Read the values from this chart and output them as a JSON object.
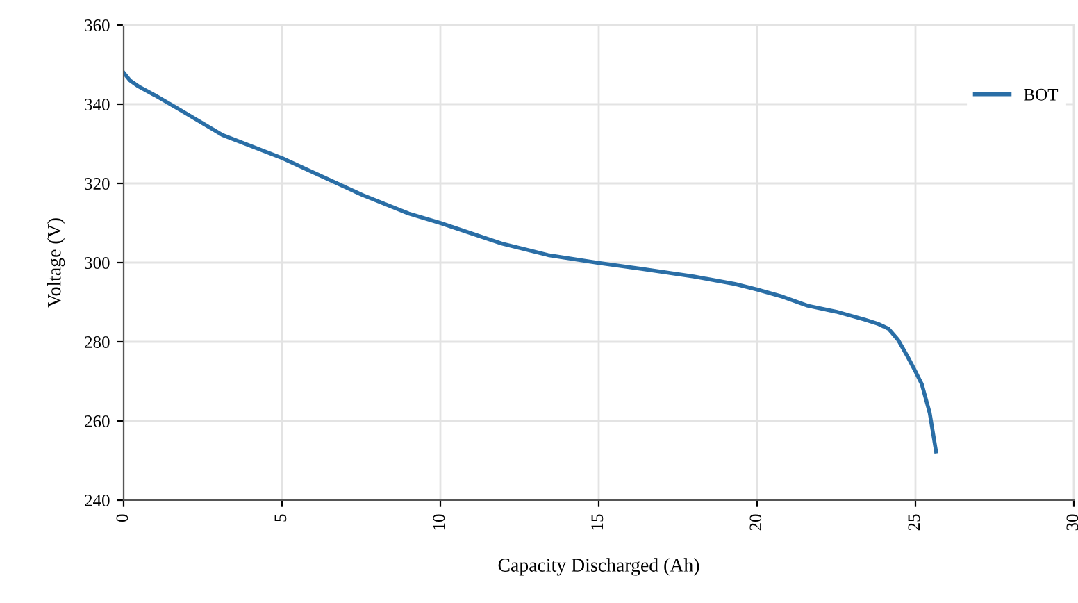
{
  "chart_data": {
    "type": "line",
    "xlabel": "Capacity Discharged (Ah)",
    "ylabel": "Voltage (V)",
    "xlim": [
      0,
      30
    ],
    "xticks": [
      0,
      5,
      10,
      15,
      20,
      25,
      30
    ],
    "ylim": [
      240,
      360
    ],
    "yticks": [
      240,
      260,
      280,
      300,
      320,
      340,
      360
    ],
    "grid": true,
    "legend": "top right",
    "marker": "none",
    "line_style": "solid",
    "series": [
      {
        "name": "BOT",
        "color": "#2a6ea6",
        "x": [
          0,
          0.2,
          0.47,
          1.0,
          1.65,
          3.12,
          5,
          7.53,
          9,
          10,
          11.94,
          13.4,
          15,
          16.35,
          18,
          19.3,
          20,
          20.8,
          21.6,
          22.5,
          23.4,
          23.8,
          24.15,
          24.45,
          24.75,
          25.0,
          25.2,
          25.45,
          25.65
        ],
        "values": [
          348.0,
          346.0,
          344.5,
          342.2,
          339.2,
          332.2,
          326.4,
          317.1,
          312.4,
          310.0,
          304.8,
          301.9,
          299.9,
          298.4,
          296.5,
          294.6,
          293.2,
          291.4,
          289.1,
          287.6,
          285.6,
          284.6,
          283.3,
          280.5,
          276.3,
          272.5,
          269.3,
          262.0,
          252.3
        ]
      }
    ]
  }
}
